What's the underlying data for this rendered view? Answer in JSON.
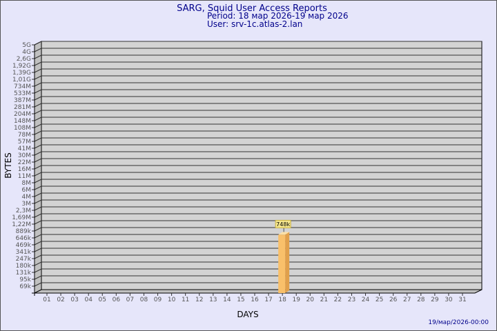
{
  "chart_data": {
    "type": "bar",
    "title": "SARG, Squid User Access Reports",
    "subtitle": "Period: 18 мар 2026-19 мар 2026",
    "user_line": "User: srv-1c.atlas-2.lan",
    "xlabel": "DAYS",
    "ylabel": "BYTES",
    "footer": "19/мар/2026-00:00",
    "y_tick_labels": [
      "5G",
      "4G",
      "2,6G",
      "1,92G",
      "1,39G",
      "1,01G",
      "734M",
      "533M",
      "387M",
      "281M",
      "204M",
      "148M",
      "108M",
      "78M",
      "57M",
      "41M",
      "30M",
      "22M",
      "16M",
      "11M",
      "8M",
      "6M",
      "4M",
      "3M",
      "2,3M",
      "1,69M",
      "1,22M",
      "889k",
      "646k",
      "469k",
      "341k",
      "247k",
      "180k",
      "131k",
      "95k",
      "69k"
    ],
    "categories": [
      "01",
      "02",
      "03",
      "04",
      "05",
      "06",
      "07",
      "08",
      "09",
      "10",
      "11",
      "12",
      "13",
      "14",
      "15",
      "16",
      "17",
      "18",
      "19",
      "20",
      "21",
      "22",
      "23",
      "24",
      "25",
      "26",
      "27",
      "28",
      "29",
      "30",
      "31"
    ],
    "bars": [
      {
        "category": "18",
        "value": 748000,
        "label": "748k"
      }
    ],
    "grid": true,
    "colors": {
      "bar": "#f9c06a",
      "bar_side": "#e0a04c",
      "plot": "#d3d3d3",
      "title": "#00008b",
      "label_box": "#f5e68c"
    }
  }
}
